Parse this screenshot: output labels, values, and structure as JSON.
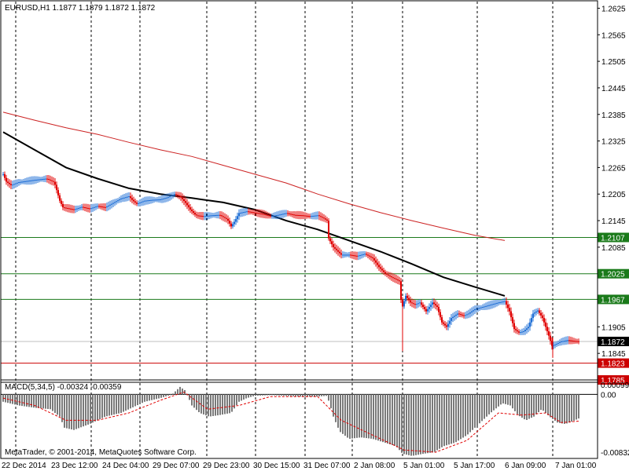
{
  "window": {
    "header": "EURUSD,H1  1.1877 1.1879 1.1872 1.1872",
    "copyright": "MetaTrader, © 2001-2014, MetaQuotes Software Corp."
  },
  "chart_data": {
    "type": "candlestick",
    "symbol": "EURUSD",
    "timeframe": "H1",
    "ohlc_last": {
      "open": 1.1877,
      "high": 1.1879,
      "low": 1.1872,
      "close": 1.1872
    },
    "price_axis": {
      "ticks": [
        "1.2625",
        "1.2565",
        "1.2505",
        "1.2445",
        "1.2385",
        "1.2325",
        "1.2265",
        "1.2205",
        "1.2145",
        "1.2085",
        "1.1905",
        "1.1845"
      ],
      "range": [
        1.1785,
        1.264
      ]
    },
    "time_axis": {
      "ticks": [
        "22 Dec 2014",
        "23 Dec 12:00",
        "24 Dec 04:00",
        "29 Dec 07:00",
        "29 Dec 23:00",
        "30 Dec 15:00",
        "31 Dec 07:00",
        "2 Jan 08:00",
        "5 Jan 01:00",
        "5 Jan 17:00",
        "6 Jan 09:00",
        "7 Jan 01:00"
      ]
    },
    "level_lines": [
      {
        "price": 1.2107,
        "label": "1.2107",
        "color": "#1a7a1a"
      },
      {
        "price": 1.2025,
        "label": "1.2025",
        "color": "#1a7a1a"
      },
      {
        "price": 1.1967,
        "label": "1.1967",
        "color": "#1a7a1a"
      },
      {
        "price": 1.1823,
        "label": "1.1823",
        "color": "#cc0000"
      },
      {
        "price": 1.1785,
        "label": "1.1785",
        "color": "#cc0000"
      }
    ],
    "current_price": {
      "price": 1.1872,
      "label": "1.1872"
    },
    "moving_averages": [
      {
        "color": "#000000",
        "points": [
          [
            0,
            1.2345
          ],
          [
            40,
            1.2305
          ],
          [
            80,
            1.2265
          ],
          [
            120,
            1.224
          ],
          [
            160,
            1.2218
          ],
          [
            200,
            1.2205
          ],
          [
            240,
            1.2196
          ],
          [
            280,
            1.2186
          ],
          [
            320,
            1.217
          ],
          [
            360,
            1.2145
          ],
          [
            400,
            1.2125
          ],
          [
            440,
            1.21
          ],
          [
            480,
            1.2075
          ],
          [
            520,
            1.2047
          ],
          [
            560,
            1.2017
          ],
          [
            600,
            1.1995
          ],
          [
            638,
            1.1975
          ]
        ]
      },
      {
        "color": "#cc2222",
        "points": [
          [
            0,
            1.239
          ],
          [
            40,
            1.2372
          ],
          [
            80,
            1.2355
          ],
          [
            120,
            1.234
          ],
          [
            160,
            1.2322
          ],
          [
            200,
            1.2305
          ],
          [
            240,
            1.229
          ],
          [
            280,
            1.227
          ],
          [
            320,
            1.225
          ],
          [
            360,
            1.223
          ],
          [
            400,
            1.2205
          ],
          [
            440,
            1.2183
          ],
          [
            480,
            1.2163
          ],
          [
            520,
            1.2145
          ],
          [
            560,
            1.2128
          ],
          [
            600,
            1.2112
          ],
          [
            638,
            1.21
          ]
        ]
      }
    ],
    "close_path": [
      [
        0,
        1.225
      ],
      [
        4,
        1.2233
      ],
      [
        10,
        1.2225
      ],
      [
        20,
        1.2232
      ],
      [
        40,
        1.2237
      ],
      [
        55,
        1.224
      ],
      [
        65,
        1.2232
      ],
      [
        72,
        1.219
      ],
      [
        76,
        1.2175
      ],
      [
        90,
        1.217
      ],
      [
        100,
        1.2176
      ],
      [
        110,
        1.2172
      ],
      [
        120,
        1.2178
      ],
      [
        130,
        1.2175
      ],
      [
        140,
        1.2185
      ],
      [
        150,
        1.2195
      ],
      [
        160,
        1.22
      ],
      [
        165,
        1.219
      ],
      [
        170,
        1.2183
      ],
      [
        180,
        1.219
      ],
      [
        190,
        1.2192
      ],
      [
        200,
        1.2193
      ],
      [
        210,
        1.2198
      ],
      [
        218,
        1.2205
      ],
      [
        225,
        1.22
      ],
      [
        232,
        1.2185
      ],
      [
        238,
        1.217
      ],
      [
        245,
        1.2157
      ],
      [
        255,
        1.2155
      ],
      [
        265,
        1.2157
      ],
      [
        275,
        1.2158
      ],
      [
        285,
        1.2148
      ],
      [
        290,
        1.2132
      ],
      [
        295,
        1.2145
      ],
      [
        300,
        1.2162
      ],
      [
        310,
        1.2166
      ],
      [
        320,
        1.2163
      ],
      [
        330,
        1.216
      ],
      [
        340,
        1.2155
      ],
      [
        350,
        1.2158
      ],
      [
        360,
        1.2162
      ],
      [
        370,
        1.2158
      ],
      [
        380,
        1.2157
      ],
      [
        390,
        1.2155
      ],
      [
        400,
        1.2157
      ],
      [
        408,
        1.215
      ],
      [
        412,
        1.2145
      ],
      [
        414,
        1.2105
      ],
      [
        420,
        1.2085
      ],
      [
        430,
        1.2068
      ],
      [
        440,
        1.2068
      ],
      [
        450,
        1.2065
      ],
      [
        460,
        1.207
      ],
      [
        470,
        1.206
      ],
      [
        478,
        1.204
      ],
      [
        486,
        1.2025
      ],
      [
        494,
        1.2017
      ],
      [
        500,
        1.2012
      ],
      [
        504,
        1.2008
      ],
      [
        507,
        1.1945
      ],
      [
        509,
        1.1957
      ],
      [
        512,
        1.1975
      ],
      [
        518,
        1.196
      ],
      [
        524,
        1.1955
      ],
      [
        530,
        1.196
      ],
      [
        538,
        1.194
      ],
      [
        546,
        1.196
      ],
      [
        552,
        1.195
      ],
      [
        558,
        1.1915
      ],
      [
        564,
        1.1905
      ],
      [
        570,
        1.1925
      ],
      [
        578,
        1.1935
      ],
      [
        586,
        1.193
      ],
      [
        592,
        1.1935
      ],
      [
        600,
        1.1945
      ],
      [
        610,
        1.195
      ],
      [
        620,
        1.1955
      ],
      [
        630,
        1.196
      ],
      [
        638,
        1.1963
      ],
      [
        644,
        1.194
      ],
      [
        650,
        1.19
      ],
      [
        656,
        1.1892
      ],
      [
        662,
        1.1895
      ],
      [
        668,
        1.1905
      ],
      [
        674,
        1.1935
      ],
      [
        680,
        1.1942
      ],
      [
        686,
        1.1925
      ],
      [
        690,
        1.1905
      ],
      [
        694,
        1.1885
      ],
      [
        698,
        1.1862
      ],
      [
        702,
        1.1865
      ],
      [
        710,
        1.1872
      ],
      [
        718,
        1.1875
      ],
      [
        726,
        1.1873
      ],
      [
        732,
        1.1872
      ]
    ],
    "macd": {
      "label": "MACD(5,34,5) -0.00324 -0.00359",
      "ticks": [
        "0.00099",
        "0.00",
        "-0.00832"
      ],
      "range": [
        -0.00832,
        0.00099
      ],
      "histogram_path": [
        [
          0,
          -0.001
        ],
        [
          20,
          -0.0015
        ],
        [
          40,
          -0.0018
        ],
        [
          60,
          -0.002
        ],
        [
          72,
          -0.003
        ],
        [
          78,
          -0.0045
        ],
        [
          90,
          -0.0048
        ],
        [
          110,
          -0.004
        ],
        [
          130,
          -0.003
        ],
        [
          150,
          -0.0025
        ],
        [
          160,
          -0.002
        ],
        [
          180,
          -0.001
        ],
        [
          200,
          -0.0005
        ],
        [
          215,
          0.0
        ],
        [
          225,
          0.001
        ],
        [
          232,
          0.0005
        ],
        [
          240,
          -0.0015
        ],
        [
          250,
          -0.0025
        ],
        [
          262,
          -0.003
        ],
        [
          275,
          -0.0028
        ],
        [
          290,
          -0.0025
        ],
        [
          300,
          -0.001
        ],
        [
          310,
          -0.0005
        ],
        [
          320,
          -0.0002
        ],
        [
          340,
          -0.0001
        ],
        [
          360,
          -0.0002
        ],
        [
          380,
          -0.0003
        ],
        [
          400,
          -0.0003
        ],
        [
          412,
          -0.0002
        ],
        [
          416,
          -0.0015
        ],
        [
          420,
          -0.003
        ],
        [
          428,
          -0.005
        ],
        [
          440,
          -0.006
        ],
        [
          455,
          -0.0058
        ],
        [
          470,
          -0.006
        ],
        [
          485,
          -0.0065
        ],
        [
          500,
          -0.007
        ],
        [
          508,
          -0.008
        ],
        [
          520,
          -0.0083
        ],
        [
          535,
          -0.008
        ],
        [
          548,
          -0.0078
        ],
        [
          560,
          -0.007
        ],
        [
          575,
          -0.0065
        ],
        [
          590,
          -0.0055
        ],
        [
          605,
          -0.004
        ],
        [
          620,
          -0.0025
        ],
        [
          635,
          -0.0012
        ],
        [
          645,
          -0.0015
        ],
        [
          655,
          -0.0028
        ],
        [
          665,
          -0.0035
        ],
        [
          675,
          -0.003
        ],
        [
          685,
          -0.002
        ],
        [
          695,
          -0.003
        ],
        [
          705,
          -0.0038
        ],
        [
          715,
          -0.004
        ],
        [
          725,
          -0.0036
        ],
        [
          733,
          -0.0032
        ]
      ],
      "signal_path": [
        [
          0,
          -0.0005
        ],
        [
          40,
          -0.0015
        ],
        [
          80,
          -0.0035
        ],
        [
          120,
          -0.0035
        ],
        [
          160,
          -0.0025
        ],
        [
          200,
          -0.0008
        ],
        [
          230,
          0.0003
        ],
        [
          260,
          -0.002
        ],
        [
          300,
          -0.0015
        ],
        [
          340,
          -0.0003
        ],
        [
          400,
          -0.0003
        ],
        [
          430,
          -0.0035
        ],
        [
          470,
          -0.0055
        ],
        [
          510,
          -0.0075
        ],
        [
          550,
          -0.0078
        ],
        [
          590,
          -0.0062
        ],
        [
          630,
          -0.0025
        ],
        [
          660,
          -0.0028
        ],
        [
          690,
          -0.0025
        ],
        [
          710,
          -0.0038
        ],
        [
          733,
          -0.0036
        ]
      ]
    },
    "colors": {
      "bull": "#1f6fd6",
      "bear": "#e00000",
      "grid": "#000000",
      "price_line": "#bfbfbf"
    }
  }
}
